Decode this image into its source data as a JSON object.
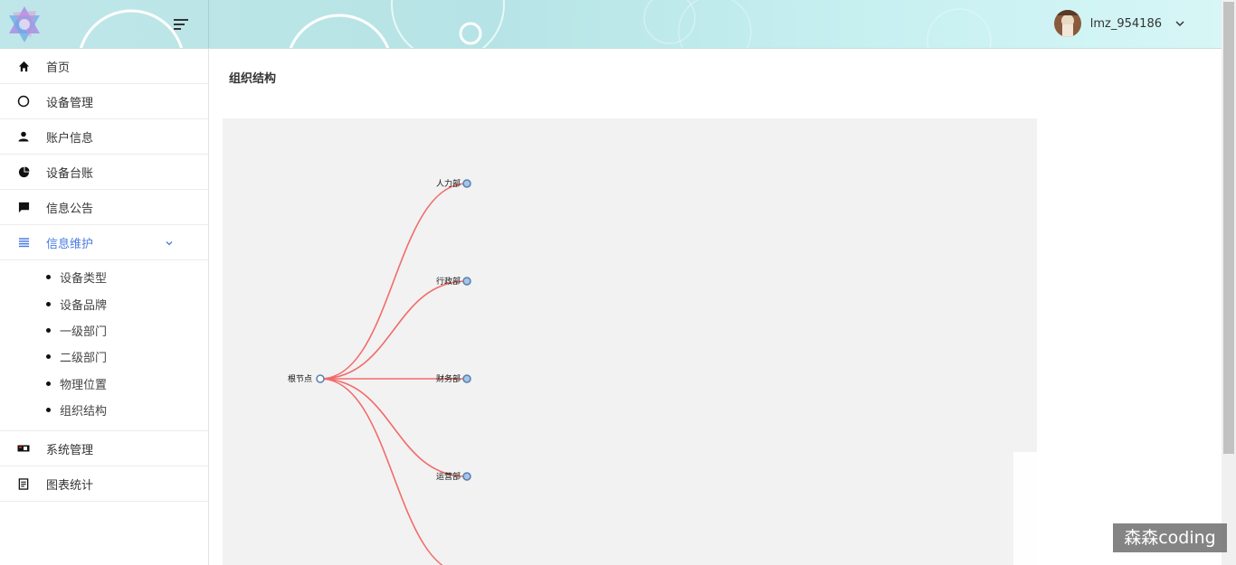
{
  "header": {
    "username": "lmz_954186"
  },
  "sidebar": {
    "items": [
      {
        "label": "首页",
        "icon": "home-icon"
      },
      {
        "label": "设备管理",
        "icon": "circle-outline-icon"
      },
      {
        "label": "账户信息",
        "icon": "person-icon"
      },
      {
        "label": "设备台账",
        "icon": "pie-chart-icon"
      },
      {
        "label": "信息公告",
        "icon": "message-icon"
      },
      {
        "label": "信息维护",
        "icon": "list-icon",
        "expanded": true,
        "active_color": "#4a7be0"
      },
      {
        "label": "系统管理",
        "icon": "settings-card-icon"
      },
      {
        "label": "图表统计",
        "icon": "document-icon"
      }
    ],
    "sub_items": [
      "设备类型",
      "设备品牌",
      "一级部门",
      "二级部门",
      "物理位置",
      "组织结构"
    ]
  },
  "main": {
    "title": "组织结构"
  },
  "tree": {
    "root": "根节点",
    "children": [
      "人力部",
      "行政部",
      "财务部",
      "运营部",
      ""
    ],
    "link_color": "#f26b6b",
    "node_fill": "#a7c3e6",
    "node_stroke": "#5580b0"
  },
  "watermark": "森森coding"
}
